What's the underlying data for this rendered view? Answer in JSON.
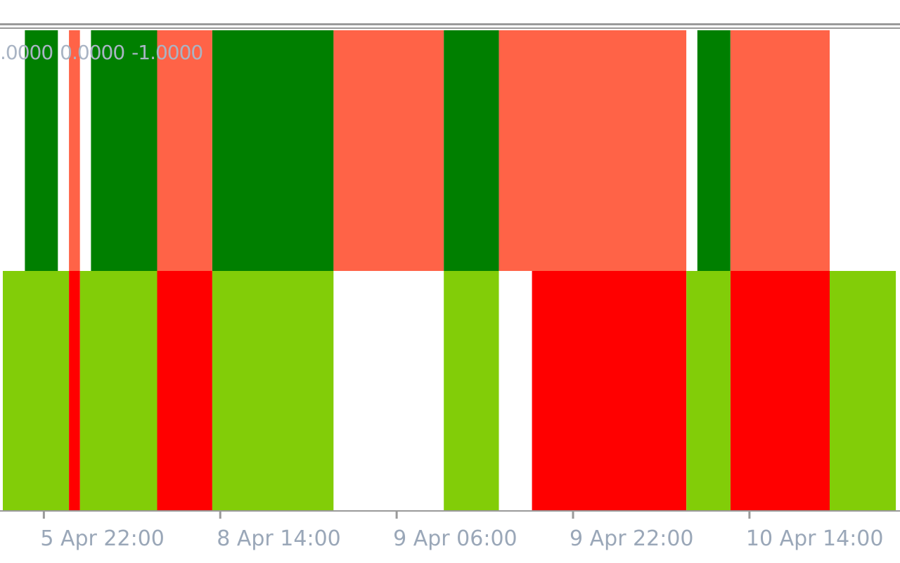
{
  "colors": {
    "background": "#ffffff",
    "frame": "#9a9a9a",
    "axis_text": "#9aa7b8",
    "value_text": "#a9b4c4",
    "bull_strong": "#007f00",
    "bear_light": "#ff6347",
    "bull_light": "#82cd08",
    "bear_strong": "#ff0000",
    "neutral": "#ffffff"
  },
  "indicator_values": [
    ".0000",
    "0.0000",
    "-1.0000"
  ],
  "chart_data": {
    "type": "heatmap",
    "title": "",
    "xlabel": "",
    "ylabel": "",
    "x_axis": {
      "first_bar_offset": 0,
      "total_bars": 81,
      "tick_labels": [
        {
          "bar": 2,
          "label": "5 Apr 22:00"
        },
        {
          "bar": 18,
          "label": "8 Apr 14:00"
        },
        {
          "bar": 34,
          "label": "9 Apr 06:00"
        },
        {
          "bar": 50,
          "label": "9 Apr 22:00"
        },
        {
          "bar": 66,
          "label": "10 Apr 14:00"
        }
      ]
    },
    "rows": [
      {
        "name": "",
        "segments": [
          {
            "from": 0,
            "to": 2,
            "state": "neutral"
          },
          {
            "from": 2,
            "to": 5,
            "state": "bull_strong"
          },
          {
            "from": 5,
            "to": 6,
            "state": "neutral"
          },
          {
            "from": 6,
            "to": 7,
            "state": "bear_light"
          },
          {
            "from": 7,
            "to": 8,
            "state": "neutral"
          },
          {
            "from": 8,
            "to": 14,
            "state": "bull_strong"
          },
          {
            "from": 14,
            "to": 19,
            "state": "bear_light"
          },
          {
            "from": 19,
            "to": 30,
            "state": "bull_strong"
          },
          {
            "from": 30,
            "to": 40,
            "state": "bear_light"
          },
          {
            "from": 40,
            "to": 45,
            "state": "bull_strong"
          },
          {
            "from": 45,
            "to": 62,
            "state": "bear_light"
          },
          {
            "from": 62,
            "to": 63,
            "state": "neutral"
          },
          {
            "from": 63,
            "to": 66,
            "state": "bull_strong"
          },
          {
            "from": 66,
            "to": 75,
            "state": "bear_light"
          },
          {
            "from": 75,
            "to": 81,
            "state": "neutral"
          }
        ]
      },
      {
        "name": "",
        "segments": [
          {
            "from": 0,
            "to": 6,
            "state": "bull_light"
          },
          {
            "from": 6,
            "to": 7,
            "state": "bear_strong"
          },
          {
            "from": 7,
            "to": 14,
            "state": "bull_light"
          },
          {
            "from": 14,
            "to": 19,
            "state": "bear_strong"
          },
          {
            "from": 19,
            "to": 30,
            "state": "bull_light"
          },
          {
            "from": 30,
            "to": 40,
            "state": "neutral"
          },
          {
            "from": 40,
            "to": 45,
            "state": "bull_light"
          },
          {
            "from": 45,
            "to": 48,
            "state": "neutral"
          },
          {
            "from": 48,
            "to": 62,
            "state": "bear_strong"
          },
          {
            "from": 62,
            "to": 66,
            "state": "bull_light"
          },
          {
            "from": 66,
            "to": 75,
            "state": "bear_strong"
          },
          {
            "from": 75,
            "to": 81,
            "state": "bull_light"
          }
        ]
      }
    ],
    "grid": false,
    "legend": "none"
  }
}
